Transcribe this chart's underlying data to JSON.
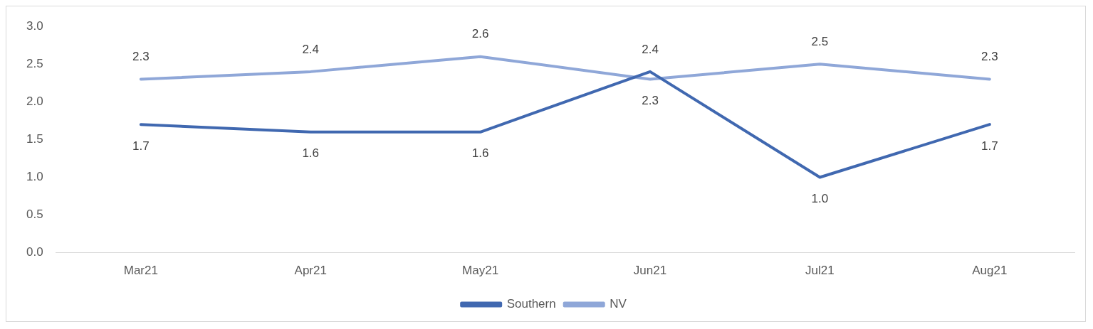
{
  "chart_data": {
    "type": "line",
    "categories": [
      "Mar21",
      "Apr21",
      "May21",
      "Jun21",
      "Jul21",
      "Aug21"
    ],
    "series": [
      {
        "name": "Southern",
        "color": "#4068b0",
        "values": [
          1.7,
          1.6,
          1.6,
          2.4,
          1.0,
          1.7
        ],
        "value_labels": [
          "1.7",
          "1.6",
          "1.6",
          "2.4",
          "1.0",
          "1.7"
        ]
      },
      {
        "name": "NV",
        "color": "#8fa7d8",
        "values": [
          2.3,
          2.4,
          2.6,
          2.3,
          2.5,
          2.3
        ],
        "value_labels": [
          "2.3",
          "2.4",
          "2.6",
          "2.3",
          "2.5",
          "2.3"
        ]
      }
    ],
    "ylim": [
      0,
      3
    ],
    "yticks": [
      {
        "value": 0,
        "label": "0.0"
      },
      {
        "value": 0.5,
        "label": "0.5"
      },
      {
        "value": 1,
        "label": "1.0"
      },
      {
        "value": 1.5,
        "label": "1.5"
      },
      {
        "value": 2,
        "label": "2.0"
      },
      {
        "value": 2.5,
        "label": "2.5"
      },
      {
        "value": 3,
        "label": "3.0"
      }
    ],
    "grid": false,
    "legend": "bottom",
    "marker": "none",
    "line_style": "solid"
  }
}
